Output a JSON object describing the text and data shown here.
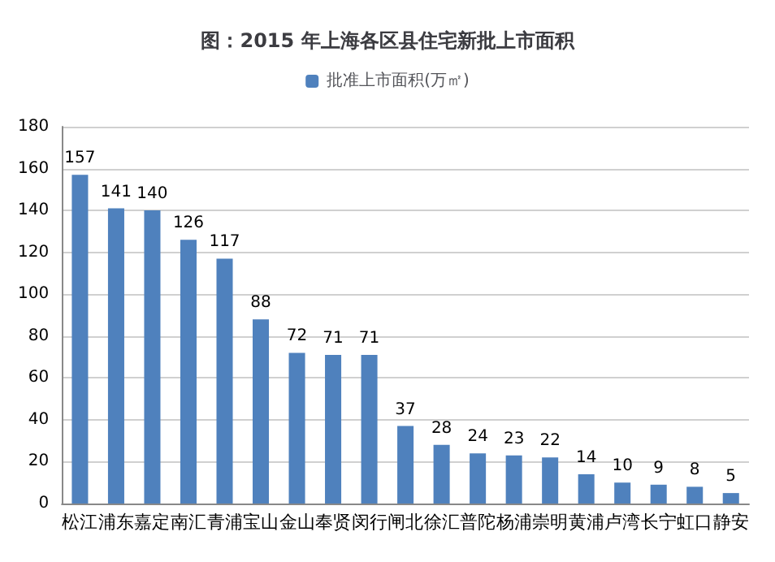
{
  "chart_data": {
    "type": "bar",
    "title": "图：2015 年上海各区县住宅新批上市面积",
    "categories": [
      "松江",
      "浦东",
      "嘉定",
      "南汇",
      "青浦",
      "宝山",
      "金山",
      "奉贤",
      "闵行",
      "闸北",
      "徐汇",
      "普陀",
      "杨浦",
      "崇明",
      "黄浦",
      "卢湾",
      "长宁",
      "虹口",
      "静安"
    ],
    "series": [
      {
        "name": "批准上市面积(万㎡)",
        "color": "#4f81bd",
        "values": [
          157,
          141,
          140,
          126,
          117,
          88,
          72,
          71,
          71,
          37,
          28,
          24,
          23,
          22,
          14,
          10,
          9,
          8,
          5
        ]
      }
    ],
    "ylim": [
      0,
      180
    ],
    "yticks": [
      0,
      20,
      40,
      60,
      80,
      100,
      120,
      140,
      160,
      180
    ],
    "grid": "y",
    "legend": "top",
    "data_labels": true
  }
}
